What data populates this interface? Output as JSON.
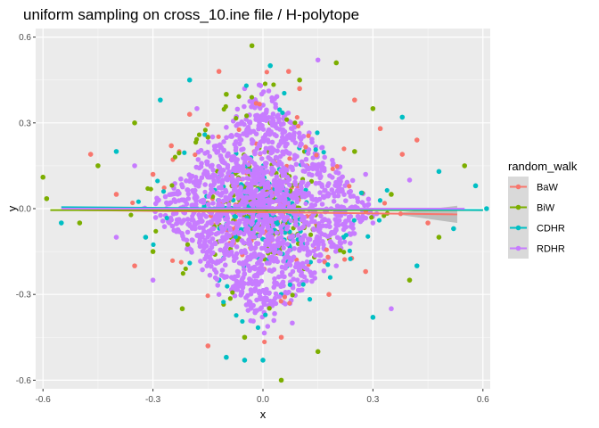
{
  "chart_data": {
    "type": "scatter",
    "title": "uniform sampling on cross_10.ine file / H-polytope",
    "xlabel": "x",
    "ylabel": "y",
    "xlim": [
      -0.62,
      0.62
    ],
    "ylim": [
      -0.63,
      0.63
    ],
    "x_ticks": [
      -0.6,
      -0.3,
      0.0,
      0.3,
      0.6
    ],
    "x_tick_labels": [
      "-0.6",
      "-0.3",
      "0.0",
      "0.3",
      "0.6"
    ],
    "y_ticks": [
      -0.6,
      -0.3,
      0.0,
      0.3,
      0.6
    ],
    "y_tick_labels": [
      "-0.6",
      "-0.3",
      "0.0",
      "0.3",
      "0.6"
    ],
    "grid": true,
    "legend_position": "right",
    "legend_title": "random_walk",
    "series": [
      {
        "name": "BaW",
        "color": "#F8766D",
        "fit_line": [
          [
            -0.5,
            -0.005
          ],
          [
            0.53,
            -0.02
          ]
        ],
        "points": [
          [
            -0.12,
            0.48
          ],
          [
            0.07,
            0.48
          ],
          [
            -0.47,
            0.19
          ],
          [
            0.38,
            0.19
          ],
          [
            0.42,
            0.24
          ],
          [
            0.25,
            0.38
          ],
          [
            -0.2,
            0.33
          ],
          [
            0.1,
            0.42
          ],
          [
            -0.3,
            0.12
          ],
          [
            0.28,
            -0.22
          ],
          [
            -0.15,
            -0.48
          ],
          [
            0.05,
            -0.45
          ],
          [
            -0.35,
            -0.2
          ],
          [
            0.32,
            0.28
          ],
          [
            0.18,
            -0.3
          ],
          [
            -0.25,
            0.22
          ],
          [
            0.45,
            -0.05
          ],
          [
            -0.4,
            0.05
          ],
          [
            0.12,
            0.15
          ],
          [
            -0.08,
            -0.12
          ]
        ]
      },
      {
        "name": "BiW",
        "color": "#7CAE00",
        "fit_line": [
          [
            -0.58,
            -0.005
          ],
          [
            0.6,
            -0.005
          ]
        ],
        "points": [
          [
            -0.6,
            0.11
          ],
          [
            -0.59,
            0.035
          ],
          [
            -0.03,
            0.57
          ],
          [
            0.05,
            -0.6
          ],
          [
            0.2,
            0.51
          ],
          [
            -0.1,
            0.4
          ],
          [
            0.55,
            0.15
          ],
          [
            0.48,
            -0.1
          ],
          [
            -0.45,
            0.15
          ],
          [
            -0.5,
            -0.05
          ],
          [
            0.3,
            0.35
          ],
          [
            -0.22,
            -0.35
          ],
          [
            0.15,
            -0.5
          ],
          [
            -0.35,
            0.3
          ],
          [
            0.4,
            -0.25
          ],
          [
            0.1,
            0.45
          ],
          [
            -0.05,
            -0.45
          ],
          [
            0.25,
            0.2
          ],
          [
            -0.3,
            -0.15
          ],
          [
            0.35,
            0.05
          ],
          [
            -0.15,
            0.25
          ],
          [
            0.02,
            0.3
          ]
        ]
      },
      {
        "name": "CDHR",
        "color": "#00BFC4",
        "fit_line": [
          [
            -0.55,
            0.005
          ],
          [
            0.6,
            -0.005
          ]
        ],
        "points": [
          [
            0.61,
            0.0
          ],
          [
            0.58,
            0.08
          ],
          [
            0.52,
            -0.07
          ],
          [
            -0.55,
            -0.05
          ],
          [
            -0.05,
            -0.53
          ],
          [
            0.0,
            -0.53
          ],
          [
            0.02,
            0.5
          ],
          [
            -0.1,
            -0.52
          ],
          [
            0.48,
            0.13
          ],
          [
            -0.2,
            0.45
          ],
          [
            0.3,
            -0.38
          ],
          [
            -0.4,
            0.2
          ],
          [
            0.42,
            -0.2
          ],
          [
            -0.28,
            0.38
          ],
          [
            0.12,
            0.2
          ],
          [
            -0.12,
            -0.25
          ],
          [
            0.22,
            -0.1
          ],
          [
            -0.32,
            -0.1
          ],
          [
            0.38,
            0.32
          ],
          [
            0.05,
            -0.3
          ]
        ]
      },
      {
        "name": "RDHR",
        "color": "#C77CFF",
        "fit_line": [
          [
            -0.55,
            0.0
          ],
          [
            0.55,
            0.0
          ]
        ],
        "points": [
          [
            0.15,
            0.52
          ],
          [
            -0.3,
            -0.25
          ],
          [
            0.35,
            -0.35
          ],
          [
            -0.18,
            0.35
          ],
          [
            0.28,
            0.12
          ],
          [
            -0.4,
            -0.1
          ],
          [
            0.08,
            -0.4
          ],
          [
            -0.05,
            0.42
          ],
          [
            0.2,
            -0.2
          ],
          [
            -0.25,
            0.05
          ],
          [
            0.4,
            0.1
          ],
          [
            -0.12,
            -0.3
          ],
          [
            0.1,
            0.25
          ],
          [
            0.0,
            0.0
          ],
          [
            -0.08,
            0.1
          ],
          [
            0.05,
            -0.1
          ],
          [
            -0.15,
            -0.05
          ],
          [
            0.18,
            0.05
          ],
          [
            0.3,
            -0.05
          ],
          [
            -0.35,
            0.15
          ]
        ]
      }
    ],
    "dense_region": {
      "note": "diamond-shaped overlapping cloud centered at origin, dominated by RDHR",
      "half_width": 0.33,
      "half_height": 0.45,
      "color": "#C77CFF"
    },
    "confidence_band": {
      "series": "BaW",
      "color": "#999999",
      "x": [
        0.38,
        0.53
      ],
      "spread": [
        0.005,
        0.03
      ]
    }
  }
}
